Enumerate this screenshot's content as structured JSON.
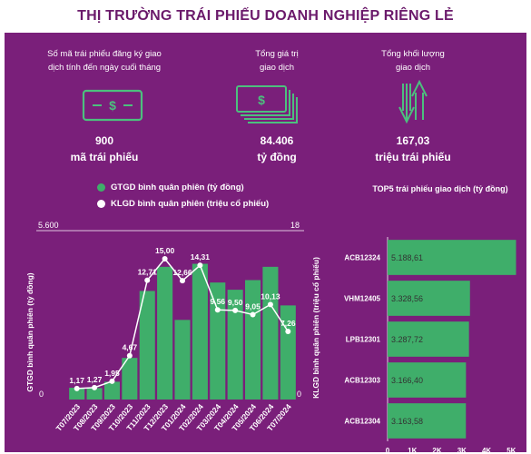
{
  "title": "THỊ TRƯỜNG TRÁI PHIẾU DOANH NGHIỆP RIÊNG LẺ",
  "stats": [
    {
      "caption_lines": [
        "Số mã trái phiếu đăng ký giao",
        "dịch tính đến ngày cuối tháng"
      ],
      "value": "900",
      "unit": "mã trái phiếu",
      "icon": "money-bill-icon"
    },
    {
      "caption_lines": [
        "Tổng giá trị",
        "giao dịch"
      ],
      "value": "84.406",
      "unit": "tỷ đồng",
      "icon": "money-stack-icon"
    },
    {
      "caption_lines": [
        "Tổng khối lượng",
        "giao dịch"
      ],
      "value": "167,03",
      "unit": "triệu trái phiếu",
      "icon": "up-down-arrows-icon"
    }
  ],
  "legend": {
    "bar_label": "GTGD bình quân phiên (tỷ đồng)",
    "line_label": "KLGD bình quân phiên (triệu cổ phiếu)"
  },
  "colors": {
    "panel": "#7a1f7a",
    "green": "#3fae6a",
    "title": "#6b1a6b"
  },
  "chart_data": [
    {
      "type": "bar",
      "categories": [
        "T07/2023",
        "T08/2023",
        "T09/2023",
        "T10/2023",
        "T11/2023",
        "T12/2023",
        "T01/2024",
        "T02/2024",
        "T03/2024",
        "T04/2024",
        "T05/2024",
        "T06/2024",
        "T07/2024"
      ],
      "series": [
        {
          "name": "GTGD bình quân phiên (tỷ đồng)",
          "type": "bar",
          "axis": "left",
          "values": [
            390,
            380,
            590,
            1380,
            3600,
            4400,
            2640,
            4500,
            3880,
            3640,
            3960,
            4400,
            3120
          ]
        },
        {
          "name": "KLGD bình quân phiên (triệu cổ phiếu)",
          "type": "line",
          "axis": "right",
          "values": [
            1.17,
            1.27,
            1.95,
            4.67,
            12.71,
            15.0,
            12.66,
            14.31,
            9.56,
            9.5,
            9.05,
            10.13,
            7.26
          ],
          "labels": [
            "1,17",
            "1,27",
            "1,95",
            "4,67",
            "12,71",
            "15,00",
            "12,66",
            "14,31",
            "9,56",
            "9,50",
            "9,05",
            "10,13",
            "7,26"
          ]
        }
      ],
      "ylabel": "GTGD bình quân phiên (tỷ đồng)",
      "y2label": "KLGD bình quân phiên (triệu cổ phiếu)",
      "ylim": [
        0,
        5600
      ],
      "y2lim": [
        0,
        18
      ],
      "ytick_labels": [
        "0",
        "5.600"
      ],
      "y2tick_labels": [
        "0",
        "18"
      ]
    },
    {
      "type": "bar",
      "orientation": "horizontal",
      "title": "TOP5 trái phiếu giao dịch (tỷ đồng)",
      "categories": [
        "ACB12324",
        "VHM12405",
        "LPB12301",
        "ACB12303",
        "ACB12304"
      ],
      "values": [
        5188.61,
        3328.56,
        3287.72,
        3166.4,
        3163.58
      ],
      "labels": [
        "5.188,61",
        "3.328,56",
        "3.287,72",
        "3.166,40",
        "3.163,58"
      ],
      "xlim": [
        0,
        5500
      ],
      "xticks": [
        0,
        1000,
        2000,
        3000,
        4000,
        5000
      ],
      "xtick_labels": [
        "0",
        "1K",
        "2K",
        "3K",
        "4K",
        "5K"
      ]
    }
  ]
}
